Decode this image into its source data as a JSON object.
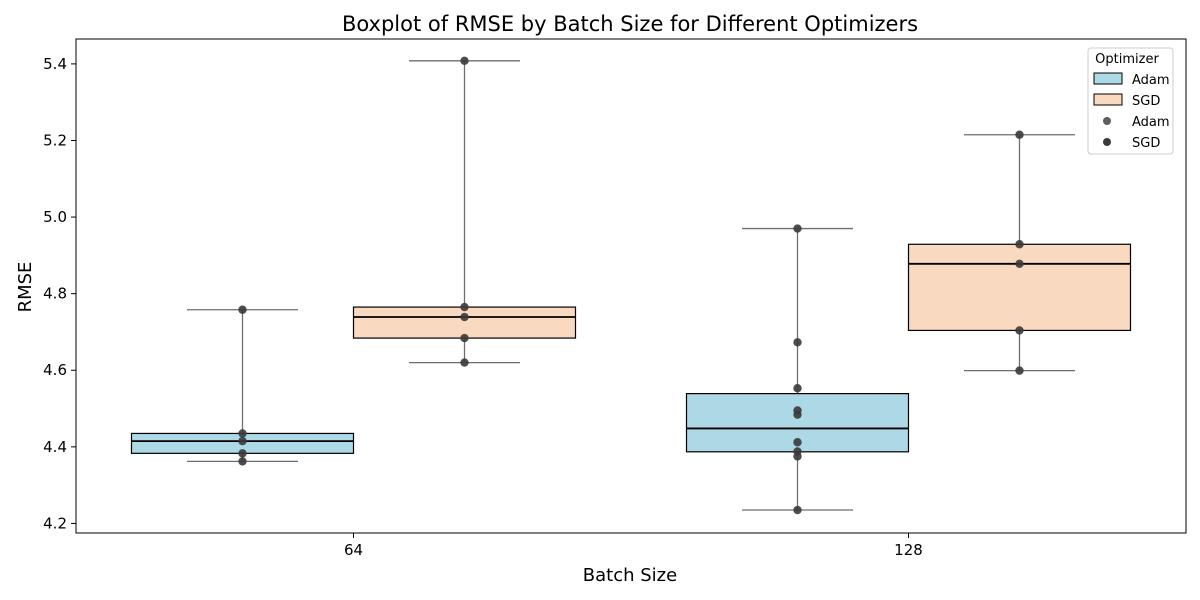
{
  "chart_data": {
    "type": "box",
    "title": "Boxplot of RMSE by Batch Size for Different Optimizers",
    "xlabel": "Batch Size",
    "ylabel": "RMSE",
    "categories": [
      "64",
      "128"
    ],
    "ylim": [
      4.175,
      5.465
    ],
    "yticks": [
      4.2,
      4.4,
      4.6,
      4.8,
      5.0,
      5.2,
      5.4
    ],
    "grid": false,
    "legend": {
      "title": "Optimizer",
      "placement": "top-right",
      "entries": [
        {
          "label": "Adam",
          "kind": "box"
        },
        {
          "label": "SGD",
          "kind": "box"
        },
        {
          "label": "Adam",
          "kind": "point"
        },
        {
          "label": "SGD",
          "kind": "point"
        }
      ]
    },
    "colors": {
      "Adam": "#add8e6",
      "SGD": "#f9d9bf",
      "points": "#3a3a3a",
      "whisker": "#6e6e6e"
    },
    "series": [
      {
        "name": "Adam",
        "boxes": [
          {
            "category": "64",
            "whislo": 4.362,
            "q1": 4.383,
            "med": 4.415,
            "q3": 4.435,
            "whishi": 4.758,
            "points": [
              4.362,
              4.383,
              4.415,
              4.435,
              4.758
            ]
          },
          {
            "category": "128",
            "whislo": 4.235,
            "q1": 4.387,
            "med": 4.448,
            "q3": 4.539,
            "whishi": 4.97,
            "points": [
              4.235,
              4.375,
              4.388,
              4.412,
              4.484,
              4.495,
              4.553,
              4.673,
              4.97
            ]
          }
        ]
      },
      {
        "name": "SGD",
        "boxes": [
          {
            "category": "64",
            "whislo": 4.62,
            "q1": 4.684,
            "med": 4.739,
            "q3": 4.765,
            "whishi": 5.408,
            "points": [
              4.62,
              4.684,
              4.739,
              4.765,
              5.408
            ]
          },
          {
            "category": "128",
            "whislo": 4.599,
            "q1": 4.704,
            "med": 4.878,
            "q3": 4.929,
            "whishi": 5.215,
            "points": [
              4.599,
              4.704,
              4.878,
              4.929,
              5.215
            ]
          }
        ]
      }
    ]
  }
}
